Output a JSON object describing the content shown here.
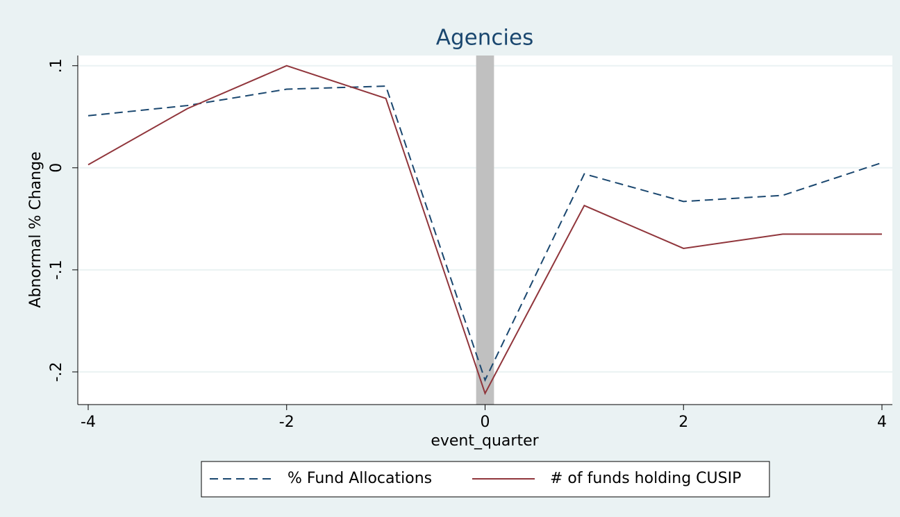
{
  "chart_data": {
    "type": "line",
    "title": "Agencies",
    "x_label": "event_quarter",
    "y_label": "Abnormal % Change",
    "x": [
      -4,
      -3,
      -2,
      -1,
      0,
      1,
      2,
      3,
      4
    ],
    "series": [
      {
        "name": "% Fund Allocations",
        "color": "#1a476f",
        "dash": true,
        "values": [
          0.051,
          0.061,
          0.077,
          0.08,
          -0.208,
          -0.006,
          -0.033,
          -0.027,
          0.005
        ]
      },
      {
        "name": "# of funds holding CUSIP",
        "color": "#90353b",
        "dash": false,
        "values": [
          0.003,
          0.058,
          0.1,
          0.068,
          -0.221,
          -0.037,
          -0.079,
          -0.065,
          -0.065
        ]
      }
    ],
    "shade_x": [
      -0.09,
      0.09
    ],
    "shade_color": "#c0c0c0",
    "xlim": [
      -4.105,
      4.105
    ],
    "xticks": [
      -4,
      -2,
      0,
      2,
      4
    ],
    "ylim": [
      -0.232,
      0.11
    ],
    "yticks": [
      {
        "value": 0.1,
        "label": ".1"
      },
      0,
      {
        "value": -0.1,
        "label": "-.1"
      },
      {
        "value": -0.2,
        "label": "-.2"
      }
    ],
    "grid": true,
    "legend": "bottom"
  }
}
